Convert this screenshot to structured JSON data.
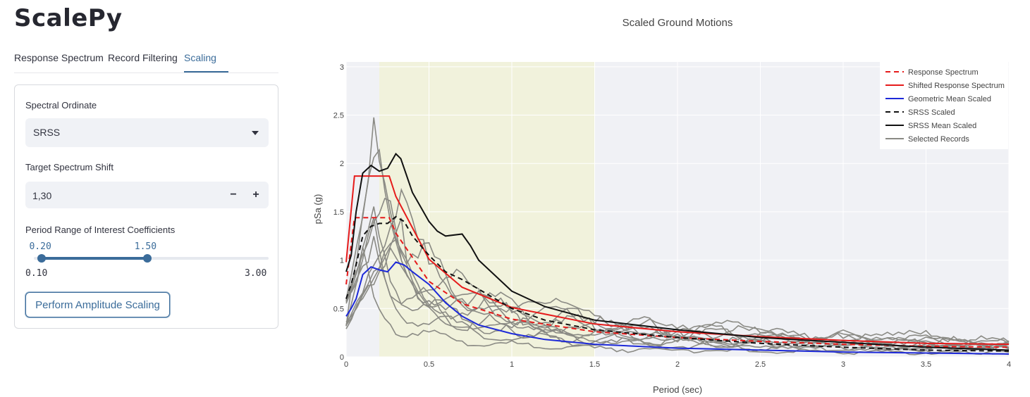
{
  "app": {
    "title": "ScalePy"
  },
  "tabs": [
    {
      "label": "Response Spectrum"
    },
    {
      "label": "Record Filtering"
    },
    {
      "label": "Scaling"
    }
  ],
  "form": {
    "spectral_ordinate": {
      "label": "Spectral Ordinate",
      "value": "SRSS"
    },
    "target_shift": {
      "label": "Target Spectrum Shift",
      "value": "1,30",
      "minus": "−",
      "plus": "+"
    },
    "period_range": {
      "label": "Period Range of Interest Coefficients",
      "low": "0.20",
      "high": "1.50",
      "min": "0.10",
      "max": "3.00",
      "low_value": 0.2,
      "high_value": 1.5,
      "min_value": 0.1,
      "max_value": 3.0
    },
    "perform_button": "Perform Amplitude Scaling"
  },
  "chart_data": {
    "type": "line",
    "title": "Scaled Ground Motions",
    "xlabel": "Period (sec)",
    "ylabel": "pSa (g)",
    "xlim": [
      0,
      4
    ],
    "ylim": [
      0,
      3.05
    ],
    "xticks": [
      "0",
      "0.5",
      "1",
      "1.5",
      "2",
      "2.5",
      "3",
      "3.5",
      "4"
    ],
    "yticks": [
      "0",
      "0.5",
      "1",
      "1.5",
      "2",
      "2.5",
      "3"
    ],
    "shaded_range": [
      0.2,
      1.5
    ],
    "legend_position": "top-right",
    "colors": {
      "plot_bg": "#f0f1f5",
      "band": "#f1f2dc",
      "grid": "#ffffff",
      "red": "#e61b1b",
      "blue": "#1d29d8",
      "black": "#111111",
      "gray": "#8a8a84"
    },
    "series": [
      {
        "name": "Response Spectrum",
        "style": "red-dash",
        "x": [
          0,
          0.05,
          0.26,
          0.3,
          0.5,
          0.7,
          1.0,
          1.5,
          2.0,
          2.5,
          3.0,
          3.5,
          4.0
        ],
        "y": [
          0.75,
          1.44,
          1.44,
          1.28,
          0.78,
          0.55,
          0.39,
          0.26,
          0.2,
          0.16,
          0.13,
          0.11,
          0.1
        ]
      },
      {
        "name": "Shifted Response Spectrum",
        "style": "red",
        "x": [
          0,
          0.05,
          0.26,
          0.3,
          0.5,
          0.7,
          1.0,
          1.5,
          2.0,
          2.5,
          3.0,
          3.5,
          4.0
        ],
        "y": [
          0.98,
          1.87,
          1.87,
          1.66,
          1.01,
          0.72,
          0.51,
          0.34,
          0.26,
          0.21,
          0.17,
          0.14,
          0.13
        ]
      },
      {
        "name": "Geometric Mean Scaled",
        "style": "blue",
        "x": [
          0,
          0.03,
          0.06,
          0.1,
          0.15,
          0.2,
          0.25,
          0.3,
          0.35,
          0.4,
          0.5,
          0.6,
          0.7,
          0.8,
          1.0,
          1.2,
          1.5,
          2.0,
          2.5,
          3.0,
          3.5,
          4.0
        ],
        "y": [
          0.42,
          0.5,
          0.6,
          0.85,
          0.93,
          0.9,
          0.88,
          0.98,
          0.95,
          0.88,
          0.75,
          0.56,
          0.42,
          0.33,
          0.24,
          0.18,
          0.13,
          0.09,
          0.07,
          0.05,
          0.04,
          0.03
        ]
      },
      {
        "name": "SRSS Scaled",
        "style": "black-dash",
        "x": [
          0,
          0.03,
          0.06,
          0.1,
          0.15,
          0.2,
          0.25,
          0.3,
          0.35,
          0.4,
          0.5,
          0.6,
          0.7,
          0.8,
          1.0,
          1.2,
          1.5,
          2.0,
          2.5,
          3.0,
          3.5,
          4.0
        ],
        "y": [
          0.6,
          0.75,
          0.95,
          1.25,
          1.35,
          1.38,
          1.38,
          1.45,
          1.4,
          1.25,
          1.05,
          0.88,
          0.8,
          0.7,
          0.5,
          0.38,
          0.28,
          0.2,
          0.14,
          0.1,
          0.07,
          0.06
        ]
      },
      {
        "name": "SRSS Mean Scaled",
        "style": "black",
        "x": [
          0,
          0.03,
          0.06,
          0.1,
          0.15,
          0.2,
          0.25,
          0.3,
          0.33,
          0.36,
          0.4,
          0.45,
          0.5,
          0.55,
          0.6,
          0.7,
          0.75,
          0.8,
          1.0,
          1.2,
          1.5,
          2.0,
          2.5,
          3.0,
          3.5,
          4.0
        ],
        "y": [
          0.88,
          1.05,
          1.5,
          1.9,
          1.98,
          1.92,
          1.95,
          2.1,
          2.05,
          1.9,
          1.7,
          1.55,
          1.4,
          1.3,
          1.25,
          1.27,
          1.15,
          1.0,
          0.68,
          0.52,
          0.38,
          0.28,
          0.2,
          0.15,
          0.1,
          0.07
        ]
      },
      {
        "name": "Selected Records",
        "style": "gray"
      }
    ],
    "selected_record_count": 11
  }
}
